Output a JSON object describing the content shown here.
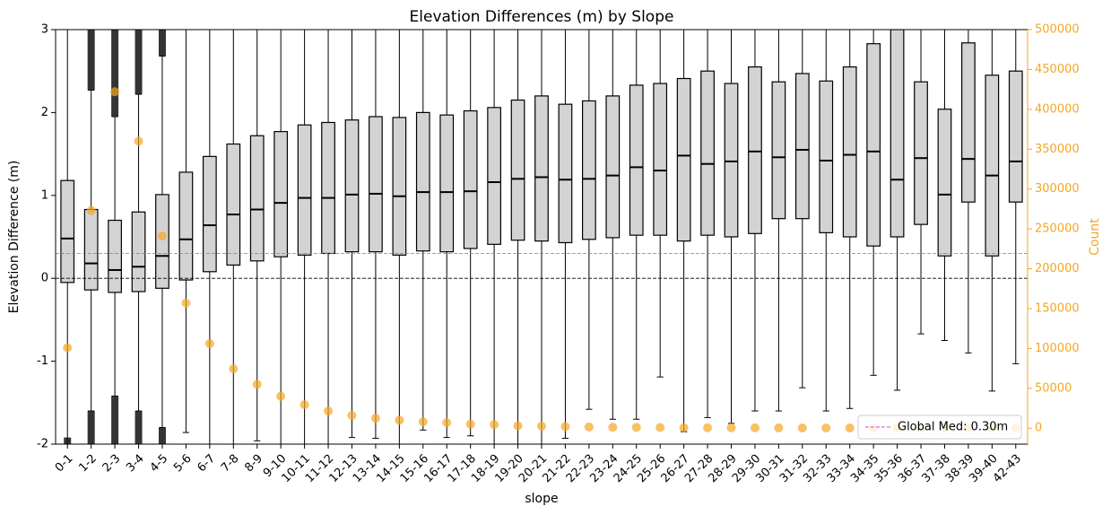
{
  "chart_data": {
    "type": "box",
    "title": "Elevation Differences (m) by Slope",
    "xlabel": "slope",
    "ylabel": "Elevation Difference (m)",
    "y2label": "Count",
    "categories": [
      "0-1",
      "1-2",
      "2-3",
      "3-4",
      "4-5",
      "5-6",
      "6-7",
      "7-8",
      "8-9",
      "9-10",
      "10-11",
      "11-12",
      "12-13",
      "13-14",
      "14-15",
      "15-16",
      "16-17",
      "17-18",
      "18-19",
      "19-20",
      "20-21",
      "21-22",
      "22-23",
      "23-24",
      "24-25",
      "25-26",
      "26-27",
      "27-28",
      "28-29",
      "29-30",
      "30-31",
      "31-32",
      "32-33",
      "33-34",
      "34-35",
      "35-36",
      "36-37",
      "37-38",
      "38-39",
      "39-40",
      "42-43"
    ],
    "ylim": [
      -2,
      3
    ],
    "yticks": [
      -2,
      -1,
      0,
      1,
      2,
      3
    ],
    "y2lim": [
      -20000,
      500000
    ],
    "y2ticks": [
      0,
      50000,
      100000,
      150000,
      200000,
      250000,
      300000,
      350000,
      400000,
      450000,
      500000
    ],
    "box_color": "#d3d3d3",
    "boxes": {
      "whisker_low": [
        -2,
        -1.6,
        -1.42,
        -1.6,
        -1.8,
        -1.86,
        -2,
        -2,
        -1.96,
        -2,
        -2,
        -2,
        -1.92,
        -1.93,
        -2,
        -1.83,
        -1.92,
        -1.9,
        -2,
        -2,
        -2,
        -1.93,
        -1.58,
        -1.7,
        -1.7,
        -1.19,
        -1.85,
        -1.68,
        -1.75,
        -1.6,
        -1.6,
        -1.32,
        -1.6,
        -1.57,
        -1.17,
        -1.35,
        -0.67,
        -0.75,
        -0.9,
        -1.36,
        -1.03
      ],
      "q1": [
        -0.05,
        -0.14,
        -0.17,
        -0.16,
        -0.12,
        -0.02,
        0.08,
        0.16,
        0.21,
        0.26,
        0.28,
        0.3,
        0.32,
        0.32,
        0.28,
        0.33,
        0.32,
        0.36,
        0.41,
        0.46,
        0.45,
        0.43,
        0.47,
        0.49,
        0.52,
        0.52,
        0.45,
        0.52,
        0.5,
        0.54,
        0.72,
        0.72,
        0.55,
        0.5,
        0.39,
        0.5,
        0.65,
        0.27,
        0.92,
        0.27,
        0.92
      ],
      "median": [
        0.48,
        0.18,
        0.1,
        0.14,
        0.27,
        0.47,
        0.64,
        0.77,
        0.83,
        0.91,
        0.97,
        0.97,
        1.01,
        1.02,
        0.99,
        1.04,
        1.04,
        1.05,
        1.16,
        1.2,
        1.22,
        1.19,
        1.2,
        1.24,
        1.34,
        1.3,
        1.48,
        1.38,
        1.41,
        1.53,
        1.46,
        1.55,
        1.42,
        1.49,
        1.53,
        1.19,
        1.45,
        1.01,
        1.44,
        1.24,
        1.41
      ],
      "q3": [
        1.18,
        0.83,
        0.7,
        0.8,
        1.01,
        1.28,
        1.47,
        1.62,
        1.72,
        1.77,
        1.85,
        1.88,
        1.91,
        1.95,
        1.94,
        2.0,
        1.97,
        2.02,
        2.06,
        2.15,
        2.2,
        2.1,
        2.14,
        2.2,
        2.33,
        2.35,
        2.41,
        2.5,
        2.35,
        2.55,
        2.37,
        2.47,
        2.38,
        2.55,
        2.83,
        3.0,
        2.37,
        2.04,
        2.84,
        2.45,
        2.5
      ],
      "whisker_high": [
        3,
        2.27,
        1.95,
        2.22,
        2.68,
        3,
        3,
        3,
        3,
        3,
        3,
        3,
        3,
        3,
        3,
        3,
        3,
        3,
        3,
        3,
        3,
        3,
        3,
        3,
        3,
        3,
        3,
        3,
        3,
        3,
        3,
        3,
        3,
        3,
        3,
        3,
        3,
        3,
        3,
        3,
        3
      ]
    },
    "fliers": [
      {
        "category": 0,
        "from": -1.92,
        "to": -2
      },
      {
        "category": 1,
        "from": 2.27,
        "to": 3
      },
      {
        "category": 1,
        "from": -1.6,
        "to": -2
      },
      {
        "category": 2,
        "from": 1.95,
        "to": 3
      },
      {
        "category": 2,
        "from": -1.42,
        "to": -2
      },
      {
        "category": 3,
        "from": 2.22,
        "to": 3
      },
      {
        "category": 3,
        "from": -1.6,
        "to": -2
      },
      {
        "category": 4,
        "from": 2.68,
        "to": 3
      },
      {
        "category": 4,
        "from": -1.8,
        "to": -2
      }
    ],
    "counts": {
      "axis": "y2",
      "color": "#f5a623",
      "values": [
        101000,
        273000,
        422000,
        360000,
        241000,
        157000,
        106000,
        74500,
        55000,
        40000,
        29500,
        21500,
        16000,
        12500,
        10000,
        8000,
        7000,
        5000,
        4500,
        3000,
        2500,
        2000,
        1500,
        1200,
        1000,
        800,
        700,
        600,
        500,
        400,
        350,
        300,
        250,
        200,
        150,
        120,
        100,
        80,
        60,
        50,
        40
      ]
    },
    "reference_lines": [
      {
        "value": 0,
        "color": "#000000"
      },
      {
        "value": 0.3,
        "color": "#e040e0",
        "label": "Global Med: 0.30m"
      }
    ]
  }
}
